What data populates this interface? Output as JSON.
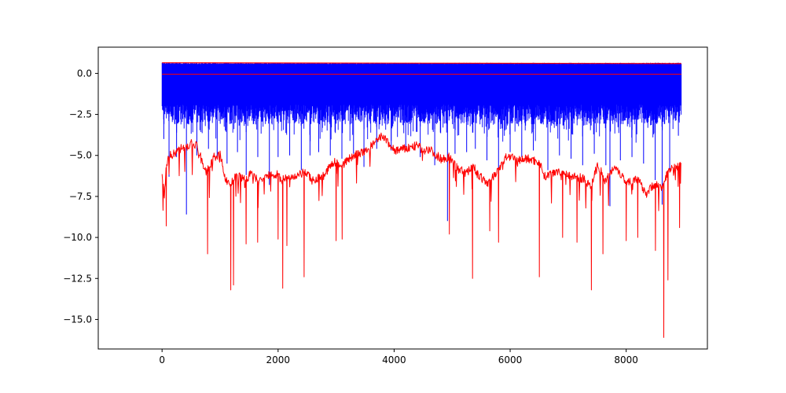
{
  "chart_data": {
    "type": "line",
    "title": "",
    "xlabel": "",
    "ylabel": "",
    "xlim": [
      -1100,
      9400
    ],
    "ylim": [
      -16.8,
      1.6
    ],
    "x_ticks": [
      0,
      2000,
      4000,
      6000,
      8000
    ],
    "x_tick_labels": [
      "0",
      "2000",
      "4000",
      "6000",
      "8000"
    ],
    "y_ticks": [
      0,
      -2.5,
      -5,
      -7.5,
      -10,
      -12.5,
      -15
    ],
    "y_tick_labels": [
      "0.0",
      "−2.5",
      "−5.0",
      "−7.5",
      "−10.0",
      "−12.5",
      "−15.0"
    ],
    "grid": false,
    "legend": "none",
    "series": [
      {
        "color": "#0000ff",
        "style": "dense oscillating band",
        "x_range": [
          0,
          8950
        ],
        "band_top": 0.65,
        "band_bottom": -2.5,
        "spikes": [
          [
            30,
            -4.0
          ],
          [
            120,
            -6.3
          ],
          [
            250,
            -5.1
          ],
          [
            420,
            -8.6
          ],
          [
            600,
            -5.0
          ],
          [
            800,
            -4.6
          ],
          [
            950,
            -5.2
          ],
          [
            1120,
            -5.5
          ],
          [
            1300,
            -4.8
          ],
          [
            1450,
            -6.2
          ],
          [
            1650,
            -5.1
          ],
          [
            1850,
            -6.8
          ],
          [
            2000,
            -5.1
          ],
          [
            2200,
            -5.0
          ],
          [
            2400,
            -5.9
          ],
          [
            2550,
            -5.0
          ],
          [
            2700,
            -4.8
          ],
          [
            2900,
            -5.0
          ],
          [
            3100,
            -5.2
          ],
          [
            3300,
            -4.9
          ],
          [
            3480,
            -5.7
          ],
          [
            3700,
            -4.6
          ],
          [
            3950,
            -4.7
          ],
          [
            4200,
            -4.5
          ],
          [
            4450,
            -5.1
          ],
          [
            4700,
            -5.6
          ],
          [
            4920,
            -9.0
          ],
          [
            5050,
            -4.9
          ],
          [
            5250,
            -4.8
          ],
          [
            5400,
            -4.6
          ],
          [
            5600,
            -5.3
          ],
          [
            5800,
            -6.6
          ],
          [
            6000,
            -4.8
          ],
          [
            6200,
            -5.1
          ],
          [
            6400,
            -4.7
          ],
          [
            6650,
            -5.9
          ],
          [
            6850,
            -5.0
          ],
          [
            7050,
            -5.2
          ],
          [
            7250,
            -5.6
          ],
          [
            7450,
            -4.9
          ],
          [
            7650,
            -5.6
          ],
          [
            7720,
            -8.1
          ],
          [
            7900,
            -5.3
          ],
          [
            8100,
            -5.1
          ],
          [
            8300,
            -5.5
          ],
          [
            8500,
            -6.5
          ],
          [
            8620,
            -8.0
          ],
          [
            8750,
            -6.0
          ],
          [
            8900,
            -3.8
          ]
        ]
      },
      {
        "color": "#ff0000",
        "style": "flat line",
        "x": [
          0,
          8950
        ],
        "y": [
          -0.05,
          -0.05
        ]
      },
      {
        "color": "#ff0000",
        "style": "thin upper envelope",
        "x": [
          0,
          8950
        ],
        "y": [
          0.65,
          0.6
        ]
      },
      {
        "color": "#ff0000",
        "style": "noisy lower line",
        "x": [
          0,
          40,
          70,
          100,
          150,
          200,
          300,
          400,
          500,
          600,
          700,
          760,
          800,
          900,
          1000,
          1100,
          1180,
          1250,
          1350,
          1450,
          1550,
          1650,
          1750,
          1850,
          2000,
          2050,
          2150,
          2300,
          2450,
          2600,
          2800,
          2950,
          3100,
          3300,
          3500,
          3650,
          3800,
          4000,
          4200,
          4400,
          4500,
          4600,
          4800,
          4950,
          5100,
          5250,
          5350,
          5450,
          5600,
          5800,
          5950,
          6100,
          6300,
          6500,
          6600,
          6800,
          6950,
          7100,
          7250,
          7400,
          7500,
          7650,
          7800,
          8000,
          8200,
          8350,
          8500,
          8620,
          8700,
          8800,
          8900,
          8950
        ],
        "y": [
          -6.2,
          -7.4,
          -5.8,
          -5.1,
          -5.0,
          -4.9,
          -4.6,
          -4.5,
          -4.3,
          -4.4,
          -5.5,
          -6.0,
          -5.8,
          -5.1,
          -5.0,
          -6.5,
          -6.8,
          -6.4,
          -6.3,
          -6.5,
          -6.0,
          -6.6,
          -6.4,
          -6.2,
          -6.1,
          -6.6,
          -6.3,
          -6.4,
          -6.0,
          -6.5,
          -6.2,
          -5.4,
          -5.6,
          -5.0,
          -4.8,
          -4.3,
          -3.8,
          -4.7,
          -4.6,
          -4.4,
          -4.7,
          -4.6,
          -5.2,
          -5.1,
          -5.8,
          -6.1,
          -5.6,
          -6.2,
          -6.7,
          -5.9,
          -5.0,
          -5.3,
          -5.2,
          -5.4,
          -6.3,
          -5.9,
          -6.1,
          -6.3,
          -6.4,
          -6.9,
          -5.5,
          -6.6,
          -5.6,
          -6.6,
          -6.5,
          -7.3,
          -6.7,
          -7.0,
          -6.1,
          -5.8,
          -5.6,
          -5.3
        ],
        "dips": [
          [
            70,
            -9.3
          ],
          [
            780,
            -11.0
          ],
          [
            1180,
            -13.2
          ],
          [
            1230,
            -12.9
          ],
          [
            1450,
            -10.4
          ],
          [
            1650,
            -10.3
          ],
          [
            2000,
            -10.1
          ],
          [
            2080,
            -13.1
          ],
          [
            2150,
            -10.5
          ],
          [
            2450,
            -12.4
          ],
          [
            3000,
            -10.2
          ],
          [
            3100,
            -10.1
          ],
          [
            4950,
            -9.8
          ],
          [
            5350,
            -12.5
          ],
          [
            5650,
            -9.6
          ],
          [
            5800,
            -10.3
          ],
          [
            6500,
            -12.4
          ],
          [
            6900,
            -10.0
          ],
          [
            7150,
            -10.3
          ],
          [
            7400,
            -13.2
          ],
          [
            7600,
            -11.0
          ],
          [
            8000,
            -10.2
          ],
          [
            8200,
            -10.0
          ],
          [
            8500,
            -10.8
          ],
          [
            8650,
            -16.1
          ],
          [
            8720,
            -12.6
          ],
          [
            8920,
            -9.4
          ]
        ]
      }
    ]
  }
}
